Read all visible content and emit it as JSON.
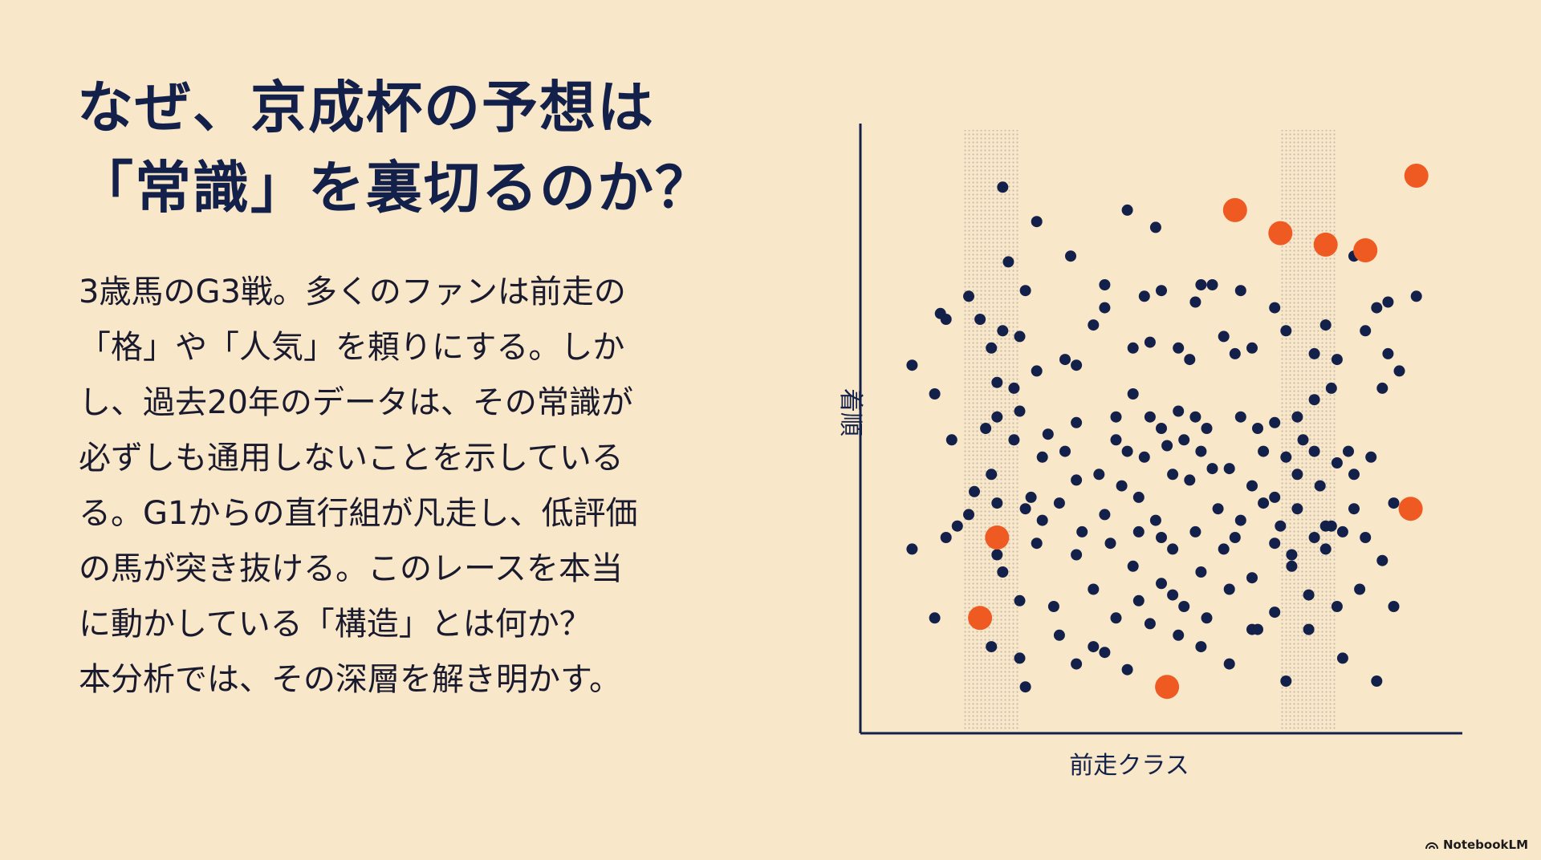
{
  "slide": {
    "title_lines": [
      "なぜ、京成杯の予想は",
      "「常識」を裏切るのか？"
    ],
    "body_lines": [
      "3歳馬のG3戦。多くのファンは前走の",
      "「格」や「人気」を頼りにする。しか",
      "し、過去20年のデータは、その常識が",
      "必ずしも通用しないことを示している",
      "る。G1からの直行組が凡走し、低評価",
      "の馬が突き抜ける。このレースを本当",
      "に動かしている「構造」とは何か？",
      "本分析では、その深層を解き明かす。"
    ],
    "brand": "NotebookLM"
  },
  "chart_data": {
    "type": "scatter",
    "title": "",
    "xlabel": "前走クラス",
    "ylabel": "着順",
    "xlim": [
      0,
      100
    ],
    "ylim": [
      0,
      100
    ],
    "grid": false,
    "legend": "none",
    "colors": {
      "normal": "#13214a",
      "highlight": "#ef5a22",
      "axis": "#13214a"
    },
    "density_bands_x": [
      20,
      76
    ],
    "series": [
      {
        "points": [
          [
            22,
            92
          ],
          [
            28,
            86
          ],
          [
            44,
            88
          ],
          [
            49,
            85
          ],
          [
            23,
            79
          ],
          [
            26,
            74
          ],
          [
            16,
            73
          ],
          [
            34,
            80
          ],
          [
            40,
            75
          ],
          [
            57,
            75
          ],
          [
            59,
            75
          ],
          [
            50,
            74
          ],
          [
            47,
            73
          ],
          [
            40,
            71
          ],
          [
            38,
            68
          ],
          [
            56,
            72
          ],
          [
            64,
            74
          ],
          [
            70,
            71
          ],
          [
            72,
            67
          ],
          [
            79,
            68
          ],
          [
            84,
            80
          ],
          [
            88,
            71
          ],
          [
            90,
            72
          ],
          [
            95,
            73
          ],
          [
            6,
            61
          ],
          [
            11,
            70
          ],
          [
            12,
            69
          ],
          [
            22,
            67
          ],
          [
            18,
            69
          ],
          [
            20,
            64
          ],
          [
            25,
            66
          ],
          [
            28,
            60
          ],
          [
            33,
            62
          ],
          [
            35,
            61
          ],
          [
            45,
            64
          ],
          [
            48,
            65
          ],
          [
            53,
            64
          ],
          [
            55,
            62
          ],
          [
            61,
            66
          ],
          [
            63,
            63
          ],
          [
            66,
            64
          ],
          [
            77,
            63
          ],
          [
            81,
            62
          ],
          [
            86,
            67
          ],
          [
            90,
            63
          ],
          [
            10,
            56
          ],
          [
            21,
            58
          ],
          [
            24,
            57
          ],
          [
            19,
            50
          ],
          [
            21,
            52
          ],
          [
            25,
            53
          ],
          [
            30,
            49
          ],
          [
            35,
            51
          ],
          [
            42,
            52
          ],
          [
            45,
            56
          ],
          [
            48,
            52
          ],
          [
            50,
            50
          ],
          [
            53,
            53
          ],
          [
            56,
            52
          ],
          [
            58,
            50
          ],
          [
            64,
            52
          ],
          [
            67,
            50
          ],
          [
            70,
            51
          ],
          [
            74,
            52
          ],
          [
            77,
            55
          ],
          [
            80,
            57
          ],
          [
            89,
            57
          ],
          [
            92,
            60
          ],
          [
            13,
            48
          ],
          [
            24,
            48
          ],
          [
            29,
            45
          ],
          [
            33,
            46
          ],
          [
            42,
            48
          ],
          [
            44,
            46
          ],
          [
            47,
            45
          ],
          [
            51,
            47
          ],
          [
            54,
            48
          ],
          [
            57,
            46
          ],
          [
            59,
            43
          ],
          [
            68,
            46
          ],
          [
            72,
            45
          ],
          [
            75,
            48
          ],
          [
            77,
            46
          ],
          [
            83,
            46
          ],
          [
            87,
            45
          ],
          [
            17,
            39
          ],
          [
            20,
            42
          ],
          [
            27,
            38
          ],
          [
            35,
            41
          ],
          [
            39,
            42
          ],
          [
            43,
            40
          ],
          [
            46,
            38
          ],
          [
            52,
            42
          ],
          [
            55,
            41
          ],
          [
            62,
            43
          ],
          [
            66,
            40
          ],
          [
            70,
            38
          ],
          [
            74,
            42
          ],
          [
            78,
            40
          ],
          [
            81,
            44
          ],
          [
            84,
            42
          ],
          [
            14,
            33
          ],
          [
            16,
            35
          ],
          [
            21,
            37
          ],
          [
            26,
            36
          ],
          [
            29,
            34
          ],
          [
            32,
            37
          ],
          [
            36,
            32
          ],
          [
            40,
            35
          ],
          [
            46,
            32
          ],
          [
            49,
            34
          ],
          [
            56,
            32
          ],
          [
            60,
            36
          ],
          [
            64,
            34
          ],
          [
            68,
            37
          ],
          [
            71,
            33
          ],
          [
            74,
            36
          ],
          [
            79,
            33
          ],
          [
            84,
            36
          ],
          [
            91,
            37
          ],
          [
            6,
            29
          ],
          [
            12,
            31
          ],
          [
            21,
            28
          ],
          [
            28,
            30
          ],
          [
            35,
            28
          ],
          [
            41,
            30
          ],
          [
            45,
            26
          ],
          [
            50,
            31
          ],
          [
            52,
            29
          ],
          [
            57,
            25
          ],
          [
            61,
            29
          ],
          [
            63,
            31
          ],
          [
            66,
            24
          ],
          [
            70,
            30
          ],
          [
            73,
            28
          ],
          [
            77,
            31
          ],
          [
            79,
            29
          ],
          [
            82,
            32
          ],
          [
            86,
            31
          ],
          [
            89,
            27
          ],
          [
            22,
            25
          ],
          [
            25,
            20
          ],
          [
            31,
            19
          ],
          [
            38,
            22
          ],
          [
            42,
            17
          ],
          [
            46,
            20
          ],
          [
            50,
            23
          ],
          [
            54,
            19
          ],
          [
            58,
            17
          ],
          [
            62,
            22
          ],
          [
            66,
            15
          ],
          [
            70,
            18
          ],
          [
            76,
            21
          ],
          [
            81,
            19
          ],
          [
            85,
            22
          ],
          [
            91,
            19
          ],
          [
            10,
            17
          ],
          [
            20,
            12
          ],
          [
            25,
            10
          ],
          [
            32,
            14
          ],
          [
            38,
            12
          ],
          [
            44,
            8
          ],
          [
            53,
            14
          ],
          [
            57,
            12
          ],
          [
            62,
            9
          ],
          [
            67,
            15
          ],
          [
            72,
            6
          ],
          [
            76,
            15
          ],
          [
            82,
            10
          ],
          [
            88,
            6
          ],
          [
            26,
            5
          ],
          [
            35,
            9
          ],
          [
            40,
            11
          ],
          [
            48,
            16
          ],
          [
            52,
            21
          ],
          [
            73,
            26
          ],
          [
            80,
            33
          ]
        ]
      },
      {
        "points": [
          [
            63,
            88
          ],
          [
            71,
            84
          ],
          [
            79,
            82
          ],
          [
            86,
            81
          ],
          [
            95,
            94
          ],
          [
            94,
            36
          ],
          [
            21,
            31
          ],
          [
            18,
            17
          ],
          [
            51,
            5
          ]
        ]
      }
    ]
  }
}
